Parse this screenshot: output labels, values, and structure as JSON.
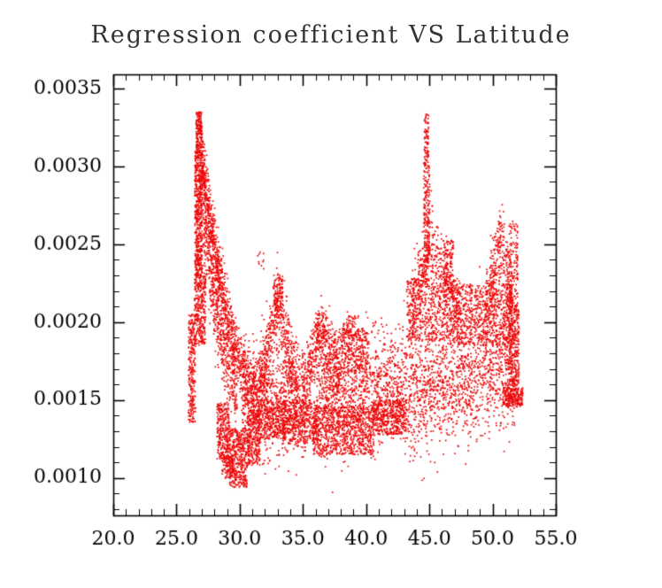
{
  "chart_data": {
    "type": "scatter",
    "title": "Regression coefficient VS Latitude",
    "xlabel": "",
    "ylabel": "",
    "legend": "none",
    "grid": false,
    "point_color": "#ec0808",
    "axis_color": "#000000",
    "point_size": 1.7,
    "x_domain": [
      20.0,
      55.0
    ],
    "y_domain": [
      0.00076,
      0.00359
    ],
    "x_major_ticks": [
      20,
      25,
      30,
      35,
      40,
      45,
      50,
      55
    ],
    "x_tick_labels": [
      "20.0",
      "25.0",
      "30.0",
      "35.0",
      "40.0",
      "45.0",
      "50.0",
      "55.0"
    ],
    "x_minor_step": 1,
    "y_major_ticks": [
      0.001,
      0.0015,
      0.002,
      0.0025,
      0.003,
      0.0035
    ],
    "y_tick_labels": [
      "0.0010",
      "0.0015",
      "0.0020",
      "0.0025",
      "0.0030",
      "0.0035"
    ],
    "y_minor_step": 0.0001,
    "description": "Dense red point cloud of regression coefficient vs latitude; tall narrow peak near latitude 26.5-27 reaching 0.0033, decaying ridge to ~0.0015 by latitude 31, low dip to ~0.00095 near latitude 30, broad band around 0.0013-0.0019 through mid latitudes with small arches near 33 and 36.5, second narrow peak near 44.8 reaching 0.0033, elevated mass 0.0019-0.0026 from 44-52, data ends near latitude 52.",
    "clusters": [
      {
        "mode": "uniform",
        "x0": 26.45,
        "x1": 27.05,
        "y0": 0.0023,
        "y1": 0.0031,
        "n": 550
      },
      {
        "mode": "uniform",
        "x0": 26.55,
        "x1": 27.0,
        "y0": 0.0031,
        "y1": 0.00335,
        "n": 170
      },
      {
        "mode": "uniform",
        "x0": 26.4,
        "x1": 27.3,
        "y0": 0.00185,
        "y1": 0.0023,
        "n": 300
      },
      {
        "mode": "band",
        "x0": 27.0,
        "x1": 27.9,
        "y0": 0.00305,
        "y1": 0.00252,
        "s": 0.0001,
        "n": 300
      },
      {
        "mode": "band",
        "x0": 27.9,
        "x1": 28.9,
        "y0": 0.00252,
        "y1": 0.00207,
        "s": 0.0001,
        "n": 280
      },
      {
        "mode": "band",
        "x0": 28.9,
        "x1": 30.3,
        "y0": 0.00207,
        "y1": 0.00168,
        "s": 0.0001,
        "n": 260
      },
      {
        "mode": "band",
        "x0": 30.3,
        "x1": 31.6,
        "y0": 0.00168,
        "y1": 0.0015,
        "s": 0.00012,
        "n": 200
      },
      {
        "mode": "band",
        "x0": 27.1,
        "x1": 28.4,
        "y0": 0.00265,
        "y1": 0.00195,
        "s": 0.00013,
        "n": 300
      },
      {
        "mode": "band",
        "x0": 28.4,
        "x1": 29.8,
        "y0": 0.00195,
        "y1": 0.00152,
        "s": 0.00012,
        "n": 260
      },
      {
        "mode": "uniform",
        "x0": 25.95,
        "x1": 26.5,
        "y0": 0.00135,
        "y1": 0.00205,
        "n": 260
      },
      {
        "mode": "uniform",
        "x0": 28.2,
        "x1": 29.2,
        "y0": 0.00112,
        "y1": 0.00148,
        "n": 280
      },
      {
        "mode": "uniform",
        "x0": 29.2,
        "x1": 30.6,
        "y0": 0.00094,
        "y1": 0.00132,
        "n": 380
      },
      {
        "mode": "uniform",
        "x0": 30.6,
        "x1": 31.6,
        "y0": 0.00108,
        "y1": 0.00142,
        "n": 260
      },
      {
        "mode": "uniform",
        "x0": 28.6,
        "x1": 29.6,
        "y0": 0.001,
        "y1": 0.00115,
        "n": 120
      },
      {
        "mode": "band",
        "x0": 30.2,
        "x1": 35.2,
        "y0": 0.0015,
        "y1": 0.0015,
        "s": 0.00017,
        "n": 900
      },
      {
        "mode": "band",
        "x0": 31.6,
        "x1": 33.0,
        "y0": 0.00162,
        "y1": 0.00213,
        "s": 0.00011,
        "n": 260
      },
      {
        "mode": "band",
        "x0": 33.0,
        "x1": 34.6,
        "y0": 0.00213,
        "y1": 0.00158,
        "s": 0.00011,
        "n": 240
      },
      {
        "mode": "uniform",
        "x0": 32.7,
        "x1": 33.4,
        "y0": 0.00208,
        "y1": 0.00232,
        "n": 90
      },
      {
        "mode": "uniform",
        "x0": 31.4,
        "x1": 31.9,
        "y0": 0.00234,
        "y1": 0.00245,
        "n": 10
      },
      {
        "mode": "uniform",
        "x0": 33.4,
        "x1": 36.2,
        "y0": 0.00122,
        "y1": 0.0015,
        "n": 380
      },
      {
        "mode": "uniform",
        "x0": 31.6,
        "x1": 33.6,
        "y0": 0.00125,
        "y1": 0.0015,
        "n": 260
      },
      {
        "mode": "band",
        "x0": 35.0,
        "x1": 36.4,
        "y0": 0.00158,
        "y1": 0.00192,
        "s": 0.00011,
        "n": 240
      },
      {
        "mode": "band",
        "x0": 36.4,
        "x1": 38.0,
        "y0": 0.00192,
        "y1": 0.00158,
        "s": 0.00011,
        "n": 220
      },
      {
        "mode": "uniform",
        "x0": 36.0,
        "x1": 36.9,
        "y0": 0.00188,
        "y1": 0.00206,
        "n": 80
      },
      {
        "mode": "uniform",
        "x0": 35.8,
        "x1": 40.6,
        "y0": 0.00115,
        "y1": 0.00146,
        "n": 750
      },
      {
        "mode": "band",
        "x0": 36.0,
        "x1": 43.0,
        "y0": 0.00148,
        "y1": 0.00162,
        "s": 0.00018,
        "n": 1100
      },
      {
        "mode": "uniform",
        "x0": 37.4,
        "x1": 40.2,
        "y0": 0.00168,
        "y1": 0.00196,
        "n": 320
      },
      {
        "mode": "uniform",
        "x0": 38.2,
        "x1": 39.4,
        "y0": 0.0019,
        "y1": 0.00204,
        "n": 70
      },
      {
        "mode": "uniform",
        "x0": 40.6,
        "x1": 43.2,
        "y0": 0.00128,
        "y1": 0.0015,
        "n": 380
      },
      {
        "mode": "band",
        "x0": 43.0,
        "x1": 52.0,
        "y0": 0.00152,
        "y1": 0.00178,
        "s": 0.0002,
        "n": 1500
      },
      {
        "mode": "uniform",
        "x0": 43.2,
        "x1": 47.6,
        "y0": 0.00188,
        "y1": 0.00228,
        "n": 520
      },
      {
        "mode": "band",
        "x0": 43.4,
        "x1": 45.0,
        "y0": 0.00198,
        "y1": 0.00252,
        "s": 0.00013,
        "n": 260
      },
      {
        "mode": "band",
        "x0": 45.0,
        "x1": 47.2,
        "y0": 0.00252,
        "y1": 0.00205,
        "s": 0.00014,
        "n": 240
      },
      {
        "mode": "uniform",
        "x0": 44.55,
        "x1": 45.05,
        "y0": 0.00238,
        "y1": 0.00305,
        "n": 170
      },
      {
        "mode": "uniform",
        "x0": 44.6,
        "x1": 44.95,
        "y0": 0.00305,
        "y1": 0.00334,
        "n": 70
      },
      {
        "mode": "uniform",
        "x0": 46.1,
        "x1": 46.9,
        "y0": 0.00215,
        "y1": 0.00253,
        "n": 130
      },
      {
        "mode": "uniform",
        "x0": 47.2,
        "x1": 51.6,
        "y0": 0.00185,
        "y1": 0.00225,
        "n": 600
      },
      {
        "mode": "band",
        "x0": 49.4,
        "x1": 50.6,
        "y0": 0.00205,
        "y1": 0.00252,
        "s": 0.00012,
        "n": 200
      },
      {
        "mode": "band",
        "x0": 50.6,
        "x1": 51.6,
        "y0": 0.00252,
        "y1": 0.00215,
        "s": 0.00012,
        "n": 150
      },
      {
        "mode": "uniform",
        "x0": 51.3,
        "x1": 52.0,
        "y0": 0.00225,
        "y1": 0.00266,
        "n": 90
      },
      {
        "mode": "uniform",
        "x0": 51.3,
        "x1": 52.1,
        "y0": 0.00148,
        "y1": 0.00225,
        "n": 320
      },
      {
        "mode": "uniform",
        "x0": 50.8,
        "x1": 52.4,
        "y0": 0.00146,
        "y1": 0.00158,
        "n": 200
      }
    ]
  }
}
